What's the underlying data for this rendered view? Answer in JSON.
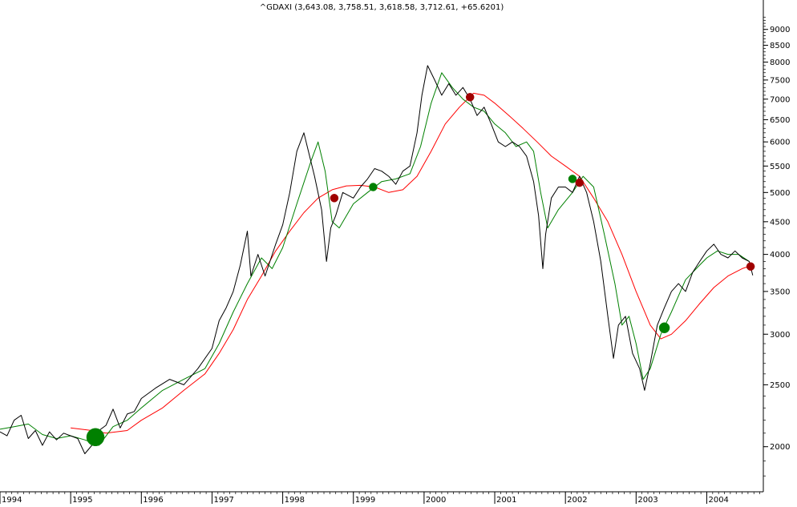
{
  "header": {
    "title": "^GDAXI (3,643.08, 3,758.51, 3,618.58, 3,712.61, +65.6201)"
  },
  "colors": {
    "price": "#000000",
    "fast_ma": "#008000",
    "slow_ma": "#ff0000",
    "buy_signal": "#008000",
    "sell_signal": "#a00000",
    "axis": "#000000",
    "background": "#ffffff"
  },
  "chart_data": {
    "type": "line",
    "title": "^GDAXI (3,643.08, 3,758.51, 3,618.58, 3,712.61, +65.6201)",
    "y_scale": "log",
    "ylim": [
      1700,
      9500
    ],
    "xlim": [
      1994.0,
      2004.8
    ],
    "grid": false,
    "y_axis_side": "right",
    "y_ticks": [
      2000,
      2500,
      3000,
      3500,
      4000,
      4500,
      5000,
      5500,
      6000,
      6500,
      7000,
      7500,
      8000,
      8500,
      9000
    ],
    "y_tick_labels": [
      "2000",
      "2500",
      "3000",
      "3500",
      "4000",
      "4500",
      "5000",
      "5500",
      "6000",
      "6500",
      "7000",
      "7500",
      "8000",
      "8500",
      "9000"
    ],
    "x_ticks": [
      1994,
      1995,
      1996,
      1997,
      1998,
      1999,
      2000,
      2001,
      2002,
      2003,
      2004
    ],
    "x_tick_labels": [
      "1994",
      "1995",
      "1996",
      "1997",
      "1998",
      "1999",
      "2000",
      "2001",
      "2002",
      "2003",
      "2004"
    ],
    "series": [
      {
        "key": "price",
        "x": [
          1994.0,
          1994.1,
          1994.2,
          1994.3,
          1994.4,
          1994.5,
          1994.6,
          1994.7,
          1994.8,
          1994.9,
          1995.0,
          1995.1,
          1995.2,
          1995.3,
          1995.4,
          1995.5,
          1995.6,
          1995.7,
          1995.8,
          1995.9,
          1996.0,
          1996.2,
          1996.4,
          1996.6,
          1996.8,
          1997.0,
          1997.1,
          1997.2,
          1997.3,
          1997.4,
          1997.5,
          1997.55,
          1997.65,
          1997.75,
          1997.9,
          1998.0,
          1998.1,
          1998.2,
          1998.3,
          1998.45,
          1998.55,
          1998.62,
          1998.68,
          1998.75,
          1998.85,
          1999.0,
          1999.1,
          1999.2,
          1999.3,
          1999.4,
          1999.5,
          1999.6,
          1999.7,
          1999.8,
          1999.9,
          1999.97,
          2000.05,
          2000.15,
          2000.25,
          2000.35,
          2000.45,
          2000.55,
          2000.65,
          2000.75,
          2000.85,
          2000.95,
          2001.05,
          2001.15,
          2001.25,
          2001.35,
          2001.45,
          2001.55,
          2001.62,
          2001.68,
          2001.72,
          2001.8,
          2001.9,
          2002.0,
          2002.1,
          2002.2,
          2002.3,
          2002.4,
          2002.5,
          2002.6,
          2002.68,
          2002.75,
          2002.85,
          2002.95,
          2003.05,
          2003.12,
          2003.2,
          2003.3,
          2003.4,
          2003.5,
          2003.6,
          2003.7,
          2003.8,
          2003.9,
          2004.0,
          2004.1,
          2004.2,
          2004.3,
          2004.4,
          2004.5,
          2004.6,
          2004.65
        ],
        "y": [
          2110,
          2080,
          2200,
          2240,
          2060,
          2120,
          2010,
          2110,
          2050,
          2100,
          2080,
          2060,
          1950,
          2010,
          2120,
          2160,
          2290,
          2140,
          2250,
          2270,
          2380,
          2470,
          2550,
          2500,
          2650,
          2850,
          3150,
          3300,
          3500,
          3850,
          4350,
          3700,
          4000,
          3700,
          4150,
          4450,
          5000,
          5800,
          6200,
          5300,
          4700,
          3900,
          4400,
          4600,
          5000,
          4900,
          5100,
          5250,
          5450,
          5400,
          5300,
          5150,
          5400,
          5500,
          6200,
          7100,
          7900,
          7500,
          7100,
          7400,
          7100,
          7300,
          7000,
          6600,
          6800,
          6400,
          6000,
          5900,
          6000,
          5900,
          5700,
          5200,
          4600,
          3800,
          4300,
          4900,
          5100,
          5100,
          5000,
          5300,
          5000,
          4500,
          3900,
          3200,
          2750,
          3100,
          3200,
          2800,
          2650,
          2450,
          2700,
          3100,
          3300,
          3500,
          3600,
          3500,
          3750,
          3900,
          4050,
          4150,
          4000,
          3950,
          4050,
          3950,
          3900,
          3710
        ]
      },
      {
        "key": "fast_ma",
        "x": [
          1994.0,
          1994.2,
          1994.4,
          1994.6,
          1994.8,
          1995.0,
          1995.2,
          1995.4,
          1995.6,
          1995.8,
          1996.0,
          1996.3,
          1996.6,
          1996.9,
          1997.1,
          1997.3,
          1997.5,
          1997.7,
          1997.85,
          1998.0,
          1998.2,
          1998.4,
          1998.5,
          1998.6,
          1998.7,
          1998.8,
          1999.0,
          1999.2,
          1999.4,
          1999.6,
          1999.8,
          1999.95,
          2000.1,
          2000.25,
          2000.4,
          2000.55,
          2000.7,
          2000.85,
          2001.0,
          2001.15,
          2001.3,
          2001.45,
          2001.55,
          2001.65,
          2001.75,
          2001.9,
          2002.1,
          2002.25,
          2002.4,
          2002.55,
          2002.7,
          2002.8,
          2002.9,
          2003.0,
          2003.1,
          2003.2,
          2003.35,
          2003.5,
          2003.7,
          2003.9,
          2004.0,
          2004.15,
          2004.3,
          2004.45,
          2004.6
        ],
        "y": [
          2130,
          2150,
          2170,
          2090,
          2060,
          2080,
          2050,
          2010,
          2150,
          2200,
          2300,
          2450,
          2550,
          2650,
          2900,
          3250,
          3600,
          3950,
          3800,
          4100,
          4800,
          5600,
          6000,
          5400,
          4500,
          4400,
          4800,
          5000,
          5200,
          5250,
          5350,
          5900,
          6900,
          7700,
          7300,
          7000,
          6800,
          6700,
          6400,
          6200,
          5900,
          6000,
          5800,
          5000,
          4400,
          4700,
          5000,
          5300,
          5100,
          4300,
          3600,
          3100,
          3200,
          2900,
          2550,
          2650,
          3000,
          3250,
          3650,
          3850,
          3950,
          4050,
          4000,
          4000,
          3900
        ]
      },
      {
        "key": "slow_ma",
        "x": [
          1995.0,
          1995.3,
          1995.5,
          1995.8,
          1996.0,
          1996.3,
          1996.6,
          1996.9,
          1997.1,
          1997.3,
          1997.5,
          1997.7,
          1997.9,
          1998.1,
          1998.3,
          1998.5,
          1998.7,
          1998.9,
          1999.1,
          1999.3,
          1999.5,
          1999.7,
          1999.9,
          2000.1,
          2000.3,
          2000.5,
          2000.7,
          2000.85,
          2001.0,
          2001.2,
          2001.4,
          2001.6,
          2001.8,
          2002.0,
          2002.2,
          2002.4,
          2002.6,
          2002.8,
          2003.0,
          2003.2,
          2003.35,
          2003.5,
          2003.7,
          2003.9,
          2004.1,
          2004.3,
          2004.5,
          2004.65
        ],
        "y": [
          2140,
          2120,
          2100,
          2120,
          2200,
          2300,
          2450,
          2600,
          2800,
          3050,
          3400,
          3700,
          4050,
          4350,
          4650,
          4900,
          5050,
          5120,
          5130,
          5100,
          5000,
          5050,
          5300,
          5800,
          6400,
          6800,
          7150,
          7100,
          6900,
          6600,
          6300,
          6000,
          5700,
          5500,
          5300,
          4900,
          4500,
          4000,
          3500,
          3100,
          2950,
          3000,
          3150,
          3350,
          3550,
          3700,
          3800,
          3850
        ]
      }
    ],
    "signals": [
      {
        "x": 1995.35,
        "y": 2070,
        "type": "buy",
        "size": "large"
      },
      {
        "x": 1998.73,
        "y": 4900,
        "type": "sell",
        "size": "small"
      },
      {
        "x": 1999.28,
        "y": 5100,
        "type": "buy",
        "size": "small"
      },
      {
        "x": 2000.65,
        "y": 7050,
        "type": "sell",
        "size": "small"
      },
      {
        "x": 2002.1,
        "y": 5250,
        "type": "buy",
        "size": "small"
      },
      {
        "x": 2002.2,
        "y": 5180,
        "type": "sell",
        "size": "small"
      },
      {
        "x": 2003.4,
        "y": 3070,
        "type": "buy",
        "size": "medium"
      },
      {
        "x": 2004.62,
        "y": 3830,
        "type": "sell",
        "size": "small"
      }
    ]
  }
}
